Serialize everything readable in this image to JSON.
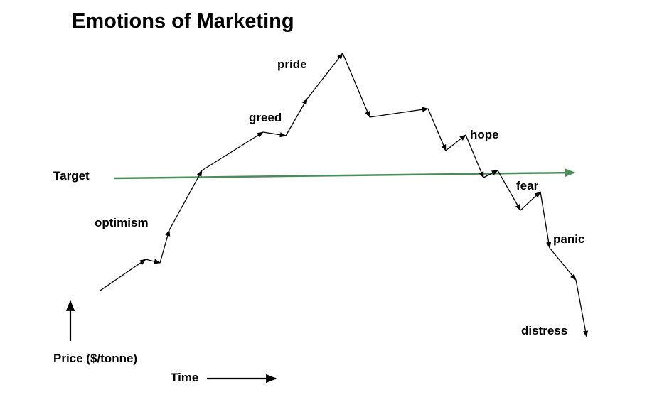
{
  "title": "Emotions of Marketing",
  "target_label": "Target",
  "y_axis_label": "Price ($/tonne)",
  "x_axis_label": "Time",
  "emotions": [
    "optimism",
    "greed",
    "pride",
    "hope",
    "fear",
    "panic",
    "distress"
  ],
  "colors": {
    "target_line": "#4a8c5a",
    "price_line": "#000000",
    "text": "#000000"
  }
}
